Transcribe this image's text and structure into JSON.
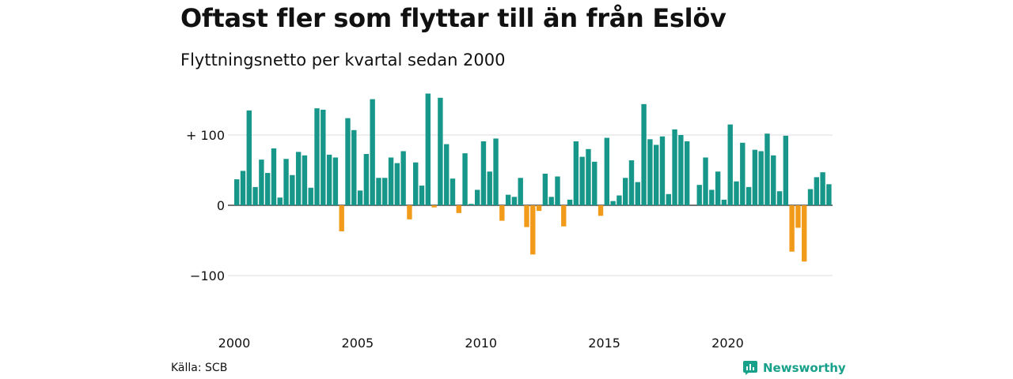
{
  "title": "Oftast fler som flyttar till än från Eslöv",
  "subtitle": "Flyttningsnetto per kvartal sedan 2000",
  "source": "Källa: SCB",
  "brand": "Newsworthy",
  "colors": {
    "positive": "#17978a",
    "negative": "#f29b1b",
    "grid": "#dddddd",
    "text": "#111111"
  },
  "chart_data": {
    "type": "bar",
    "x_tick_labels": [
      "2000",
      "2005",
      "2010",
      "2015",
      "2020"
    ],
    "y_tick_labels": [
      "+ 100",
      "0",
      "−100"
    ],
    "y_ticks": [
      100,
      0,
      -100
    ],
    "ylim": [
      -135,
      175
    ],
    "grid": true,
    "start": "2000Q1",
    "series": [
      {
        "values": [
          37,
          49,
          135,
          26,
          65,
          46,
          81,
          11,
          66,
          43,
          76,
          71,
          25,
          138,
          136,
          72,
          68,
          -37,
          124,
          107,
          21,
          73,
          151,
          39,
          39,
          68,
          60,
          77,
          -20,
          61,
          28,
          159,
          -3,
          153,
          87,
          38,
          -11,
          74,
          2,
          22,
          91,
          48,
          95,
          -22,
          15,
          12,
          39,
          -31,
          -70,
          -8,
          45,
          12,
          41,
          -30,
          8,
          91,
          69,
          80,
          62,
          -15,
          96,
          6,
          14,
          39,
          64,
          33,
          144,
          94,
          86,
          98,
          16,
          108,
          100,
          91,
          0,
          29,
          68,
          22,
          48,
          8,
          115,
          34,
          89,
          26,
          79,
          77,
          102,
          71,
          20,
          99,
          -66,
          -32,
          -80,
          23,
          40,
          47,
          30
        ]
      }
    ]
  }
}
